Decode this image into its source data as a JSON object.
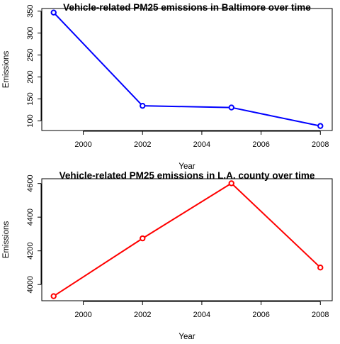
{
  "chart_data": [
    {
      "type": "line",
      "title": "Vehicle-related PM25 emissions in Baltimore over time",
      "xlabel": "Year",
      "ylabel": "Emissions",
      "x": [
        1999,
        2002,
        2005,
        2008
      ],
      "series": [
        {
          "values": [
            346.8,
            134.3,
            130.4,
            88.3
          ]
        }
      ],
      "color": "#0000ff",
      "marker": "open-circle",
      "xlim": [
        1998.6,
        2008.4
      ],
      "ylim": [
        78,
        356
      ],
      "xticks": [
        2000,
        2002,
        2004,
        2006,
        2008
      ],
      "yticks": [
        100,
        150,
        200,
        250,
        300,
        350
      ],
      "grid": false,
      "legend": "none"
    },
    {
      "type": "line",
      "title": "Vehicle-related PM25 emissions in L.A. county over time",
      "xlabel": "Year",
      "ylabel": "Emissions",
      "x": [
        1999,
        2002,
        2005,
        2008
      ],
      "series": [
        {
          "values": [
            3931,
            4274,
            4601,
            4101
          ]
        }
      ],
      "color": "#ff0000",
      "marker": "open-circle",
      "xlim": [
        1998.6,
        2008.4
      ],
      "ylim": [
        3904,
        4628
      ],
      "xticks": [
        2000,
        2002,
        2004,
        2006,
        2008
      ],
      "yticks": [
        4000,
        4200,
        4400,
        4600
      ],
      "grid": false,
      "legend": "none"
    }
  ]
}
